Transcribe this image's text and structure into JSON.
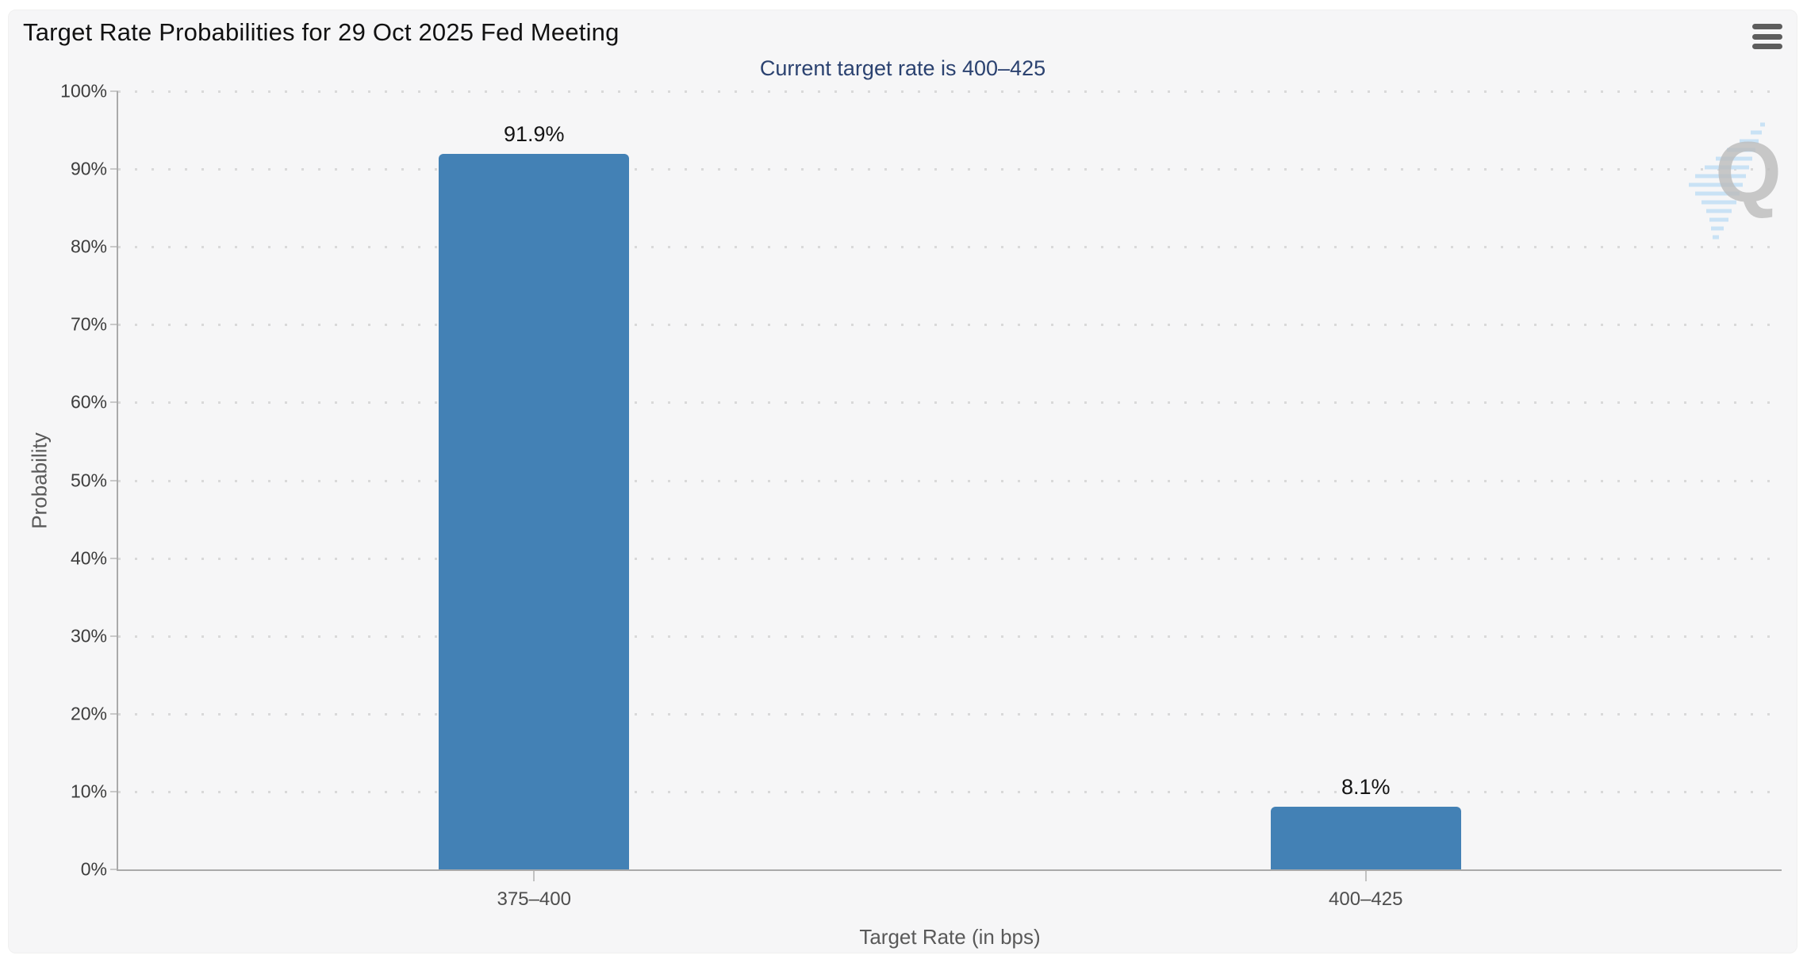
{
  "header": {
    "title": "Target Rate Probabilities for 29 Oct 2025 Fed Meeting",
    "menu_icon": "hamburger-icon"
  },
  "subtitle": "Current target rate is 400–425",
  "watermark": {
    "letter": "Q"
  },
  "chart_data": {
    "type": "bar",
    "title": "Target Rate Probabilities for 29 Oct 2025 Fed Meeting",
    "subtitle": "Current target rate is 400–425",
    "categories": [
      "375–400",
      "400–425"
    ],
    "values": [
      91.9,
      8.1
    ],
    "value_labels": [
      "91.9%",
      "8.1%"
    ],
    "xlabel": "Target Rate (in bps)",
    "ylabel": "Probability",
    "ylim": [
      0,
      100
    ],
    "ytick_step": 10,
    "ytick_labels": [
      "0%",
      "10%",
      "20%",
      "30%",
      "40%",
      "50%",
      "60%",
      "70%",
      "80%",
      "90%",
      "100%"
    ],
    "grid": "horizontal-dotted",
    "legend": "none",
    "bar_color": "#4381b5"
  },
  "colors": {
    "card_background": "#f6f6f7",
    "bar": "#4381b5",
    "subtitle_text": "#2b4270",
    "axis_line": "#aaaaaa",
    "gridline_dot": "#d9d9d9",
    "watermark_gray": "#bcbcbc",
    "watermark_blue": "#c9e2f5"
  }
}
